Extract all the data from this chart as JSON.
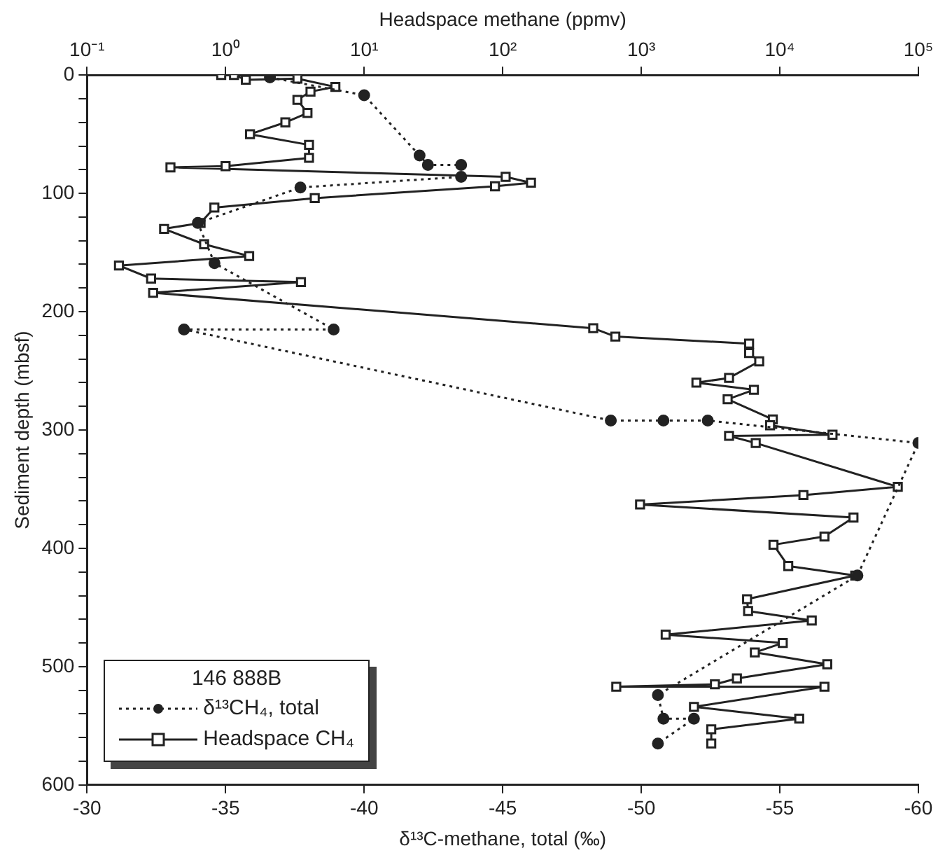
{
  "chart_data": {
    "type": "line",
    "xlabel": "δ¹³C-methane, total (‰)",
    "x2label": "Headspace methane (ppmv)",
    "ylabel": "Sediment depth (mbsf)",
    "legend_title": "146 888B",
    "legend": "bottom left",
    "log": "x2",
    "grid": false,
    "xlim": [
      -30,
      -60
    ],
    "xticks": [
      -30,
      -35,
      -40,
      -45,
      -50,
      -55,
      -60
    ],
    "x2lim": [
      0.1,
      100000
    ],
    "x2ticks": [
      {
        "value": 0.1,
        "label": "10⁻¹"
      },
      {
        "value": 1,
        "label": "10⁰"
      },
      {
        "value": 10,
        "label": "10¹"
      },
      {
        "value": 100,
        "label": "10²"
      },
      {
        "value": 1000,
        "label": "10³"
      },
      {
        "value": 10000,
        "label": "10⁴"
      },
      {
        "value": 100000,
        "label": "10⁵"
      }
    ],
    "ylim": [
      600,
      0
    ],
    "yticks": [
      0,
      {
        "value": 20,
        "label": null
      },
      {
        "value": 40,
        "label": null
      },
      {
        "value": 60,
        "label": null
      },
      {
        "value": 80,
        "label": null
      },
      100,
      {
        "value": 120,
        "label": null
      },
      {
        "value": 140,
        "label": null
      },
      {
        "value": 160,
        "label": null
      },
      {
        "value": 180,
        "label": null
      },
      200,
      {
        "value": 220,
        "label": null
      },
      {
        "value": 240,
        "label": null
      },
      {
        "value": 260,
        "label": null
      },
      {
        "value": 280,
        "label": null
      },
      300,
      {
        "value": 320,
        "label": null
      },
      {
        "value": 340,
        "label": null
      },
      {
        "value": 360,
        "label": null
      },
      {
        "value": 380,
        "label": null
      },
      400,
      {
        "value": 420,
        "label": null
      },
      {
        "value": 440,
        "label": null
      },
      {
        "value": 460,
        "label": null
      },
      {
        "value": 480,
        "label": null
      },
      500,
      {
        "value": 520,
        "label": null
      },
      {
        "value": 540,
        "label": null
      },
      {
        "value": 560,
        "label": null
      },
      {
        "value": 580,
        "label": null
      },
      600
    ],
    "series": [
      {
        "name": "δ¹³CH₄, total",
        "color": "#222222",
        "marker": "circle",
        "line_style": "dotted",
        "x": [
          -36.6,
          -40.0,
          -42.0,
          -42.3,
          -43.5,
          -43.5,
          -37.7,
          -34.0,
          -34.6,
          -38.9,
          -33.5,
          -48.9,
          -50.8,
          -52.4,
          -60.0,
          -57.8,
          -50.6,
          -50.8,
          -51.9,
          -50.6
        ],
        "values": [
          2,
          17,
          68,
          76,
          76,
          86,
          95,
          125,
          159,
          215,
          215,
          292,
          292,
          292,
          311,
          423,
          524,
          544,
          544,
          565
        ]
      },
      {
        "name": "Headspace CH₄",
        "color": "#222222",
        "marker": "square",
        "line_style": "solid",
        "axis": "x2",
        "x": [
          0.93,
          1.15,
          1.4,
          3.3,
          6.2,
          4.1,
          3.3,
          3.9,
          2.7,
          1.5,
          4.0,
          4.0,
          1.0,
          0.4,
          105,
          160,
          88,
          4.4,
          0.83,
          0.66,
          0.36,
          0.7,
          1.48,
          0.17,
          0.29,
          3.5,
          0.3,
          450,
          650,
          6000,
          6000,
          7100,
          4300,
          2500,
          6500,
          4200,
          8900,
          8500,
          24000,
          4300,
          6700,
          71000,
          14800,
          980,
          34000,
          21000,
          9000,
          11500,
          35000,
          5800,
          5900,
          17000,
          1500,
          10500,
          6600,
          22000,
          4900,
          3400,
          660,
          21000,
          2400,
          13800,
          3200,
          3200
        ],
        "values": [
          0,
          0,
          4,
          3,
          10,
          14,
          21,
          32,
          40,
          50,
          59,
          70,
          77,
          78,
          86,
          91,
          94,
          104,
          112,
          125,
          130,
          143,
          153,
          161,
          172,
          175,
          184,
          214,
          221,
          227,
          235,
          242,
          256,
          260,
          266,
          274,
          291,
          296,
          304,
          305,
          311,
          348,
          355,
          363,
          374,
          390,
          397,
          415,
          423,
          443,
          453,
          461,
          473,
          480,
          488,
          498,
          510,
          515,
          517,
          517,
          534,
          544,
          553,
          565
        ]
      }
    ]
  }
}
